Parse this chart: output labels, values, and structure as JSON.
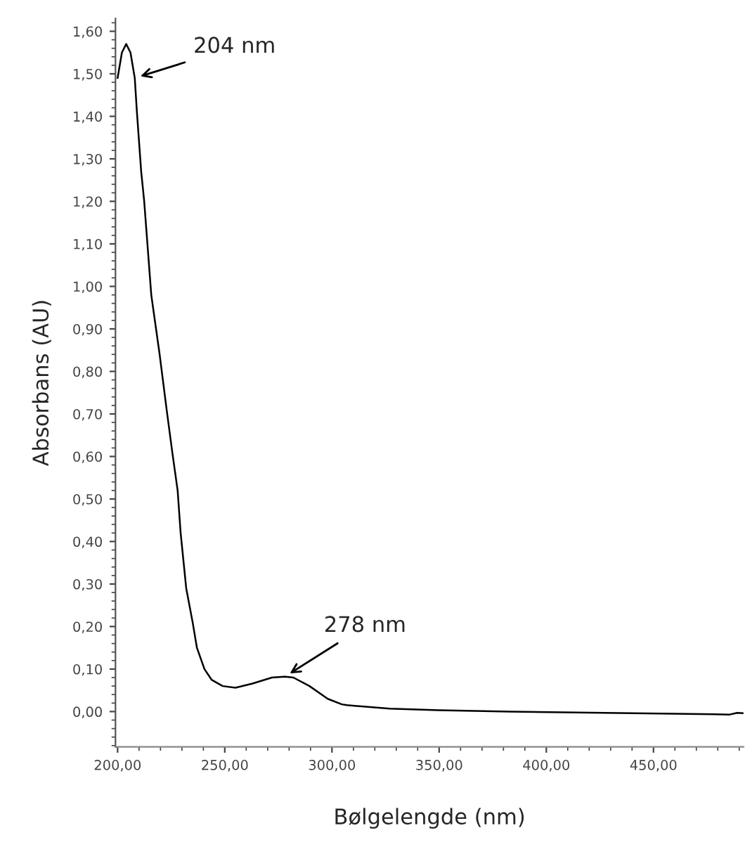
{
  "chart_data": {
    "type": "line",
    "xlabel": "Bølgelengde (nm)",
    "ylabel": "Absorbans (AU)",
    "x": [
      200,
      202,
      204,
      206,
      208,
      209,
      211,
      212.4,
      215.7,
      219.6,
      223,
      225.5,
      228,
      229.4,
      232,
      235,
      237,
      240.5,
      243.8,
      249,
      255,
      263,
      272,
      278,
      282,
      289.5,
      298,
      304.6,
      307,
      327,
      350,
      383,
      427,
      485.6,
      489,
      492
    ],
    "series": [
      {
        "color": "#000000",
        "values": [
          1.49,
          1.55,
          1.57,
          1.55,
          1.49,
          1.41,
          1.27,
          1.2,
          0.98,
          0.84,
          0.705,
          0.61,
          0.52,
          0.42,
          0.29,
          0.21,
          0.15,
          0.1,
          0.075,
          0.06,
          0.056,
          0.066,
          0.08,
          0.082,
          0.08,
          0.06,
          0.03,
          0.017,
          0.015,
          0.007,
          0.003,
          0.0,
          -0.003,
          -0.007,
          -0.003,
          -0.004
        ]
      }
    ],
    "xlim": [
      199,
      492
    ],
    "ylim": [
      -0.083,
      1.63
    ],
    "xticks": [
      {
        "value": 200,
        "label": "200,00"
      },
      {
        "value": 250,
        "label": "250,00"
      },
      {
        "value": 300,
        "label": "300,00"
      },
      {
        "value": 350,
        "label": "350,00"
      },
      {
        "value": 400,
        "label": "400,00"
      },
      {
        "value": 450,
        "label": "450,00"
      }
    ],
    "yticks": [
      {
        "value": 0,
        "label": "0,00"
      },
      {
        "value": 0.1,
        "label": "0,10"
      },
      {
        "value": 0.2,
        "label": "0,20"
      },
      {
        "value": 0.3,
        "label": "0,30"
      },
      {
        "value": 0.4,
        "label": "0,40"
      },
      {
        "value": 0.5,
        "label": "0,50"
      },
      {
        "value": 0.6,
        "label": "0,60"
      },
      {
        "value": 0.7,
        "label": "0,70"
      },
      {
        "value": 0.8,
        "label": "0,80"
      },
      {
        "value": 0.9,
        "label": "0,90"
      },
      {
        "value": 1.0,
        "label": "1,00"
      },
      {
        "value": 1.1,
        "label": "1,10"
      },
      {
        "value": 1.2,
        "label": "1,20"
      },
      {
        "value": 1.3,
        "label": "1,30"
      },
      {
        "value": 1.4,
        "label": "1,40"
      },
      {
        "value": 1.5,
        "label": "1,50"
      },
      {
        "value": 1.6,
        "label": "1,60"
      }
    ],
    "annotations": [
      {
        "text": "204 nm",
        "x": 208,
        "y": 1.49
      },
      {
        "text": "278 nm",
        "x": 278,
        "y": 0.082
      }
    ],
    "grid": false,
    "legend": false,
    "marker": "none",
    "line_style": "solid"
  }
}
